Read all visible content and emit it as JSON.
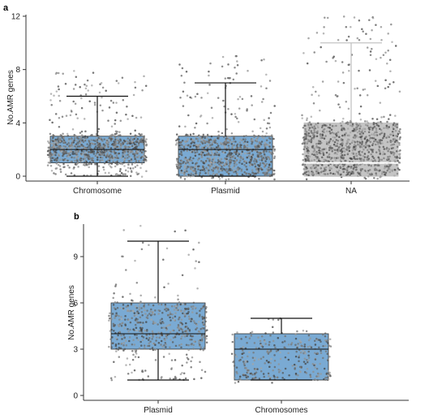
{
  "panels": [
    {
      "letter": "a",
      "chart_data": {
        "type": "box",
        "xlabel": "",
        "ylabel": "No.AMR genes",
        "ylim": [
          0,
          12
        ],
        "yticks": [
          0,
          4,
          8,
          12
        ],
        "grid": false,
        "legend": "none",
        "overlay": "jittered points",
        "categories": [
          "Chromosome",
          "Plasmid",
          "NA"
        ],
        "boxes": [
          {
            "category": "Chromosome",
            "min": 0,
            "q1": 1,
            "median": 2,
            "q3": 3,
            "max": 6,
            "color": "#7aaad3",
            "jitter_max": 8,
            "n_points": 900
          },
          {
            "category": "Plasmid",
            "min": 0,
            "q1": 0,
            "median": 2,
            "q3": 3,
            "max": 7,
            "color": "#7aaad3",
            "jitter_max": 9,
            "n_points": 900
          },
          {
            "category": "NA",
            "min": 0,
            "q1": 0,
            "median": 1,
            "q3": 4,
            "max": 10,
            "color": "#c4c4c4",
            "jitter_max": 12,
            "n_points": 1000
          }
        ]
      }
    },
    {
      "letter": "b",
      "chart_data": {
        "type": "box",
        "xlabel": "",
        "ylabel": "No.AMR genes",
        "ylim": [
          0,
          11
        ],
        "yticks": [
          0,
          3,
          6,
          9
        ],
        "grid": false,
        "legend": "none",
        "overlay": "jittered points",
        "categories": [
          "Plasmid",
          "Chromosomes"
        ],
        "boxes": [
          {
            "category": "Plasmid",
            "min": 1,
            "q1": 3,
            "median": 4,
            "q3": 6,
            "max": 10,
            "color": "#7aaad3",
            "jitter_max": 11,
            "n_points": 550
          },
          {
            "category": "Chromosomes",
            "min": 1,
            "q1": 1,
            "median": 3,
            "q3": 4,
            "max": 5,
            "color": "#7aaad3",
            "jitter_max": 5,
            "n_points": 300
          }
        ]
      }
    }
  ]
}
